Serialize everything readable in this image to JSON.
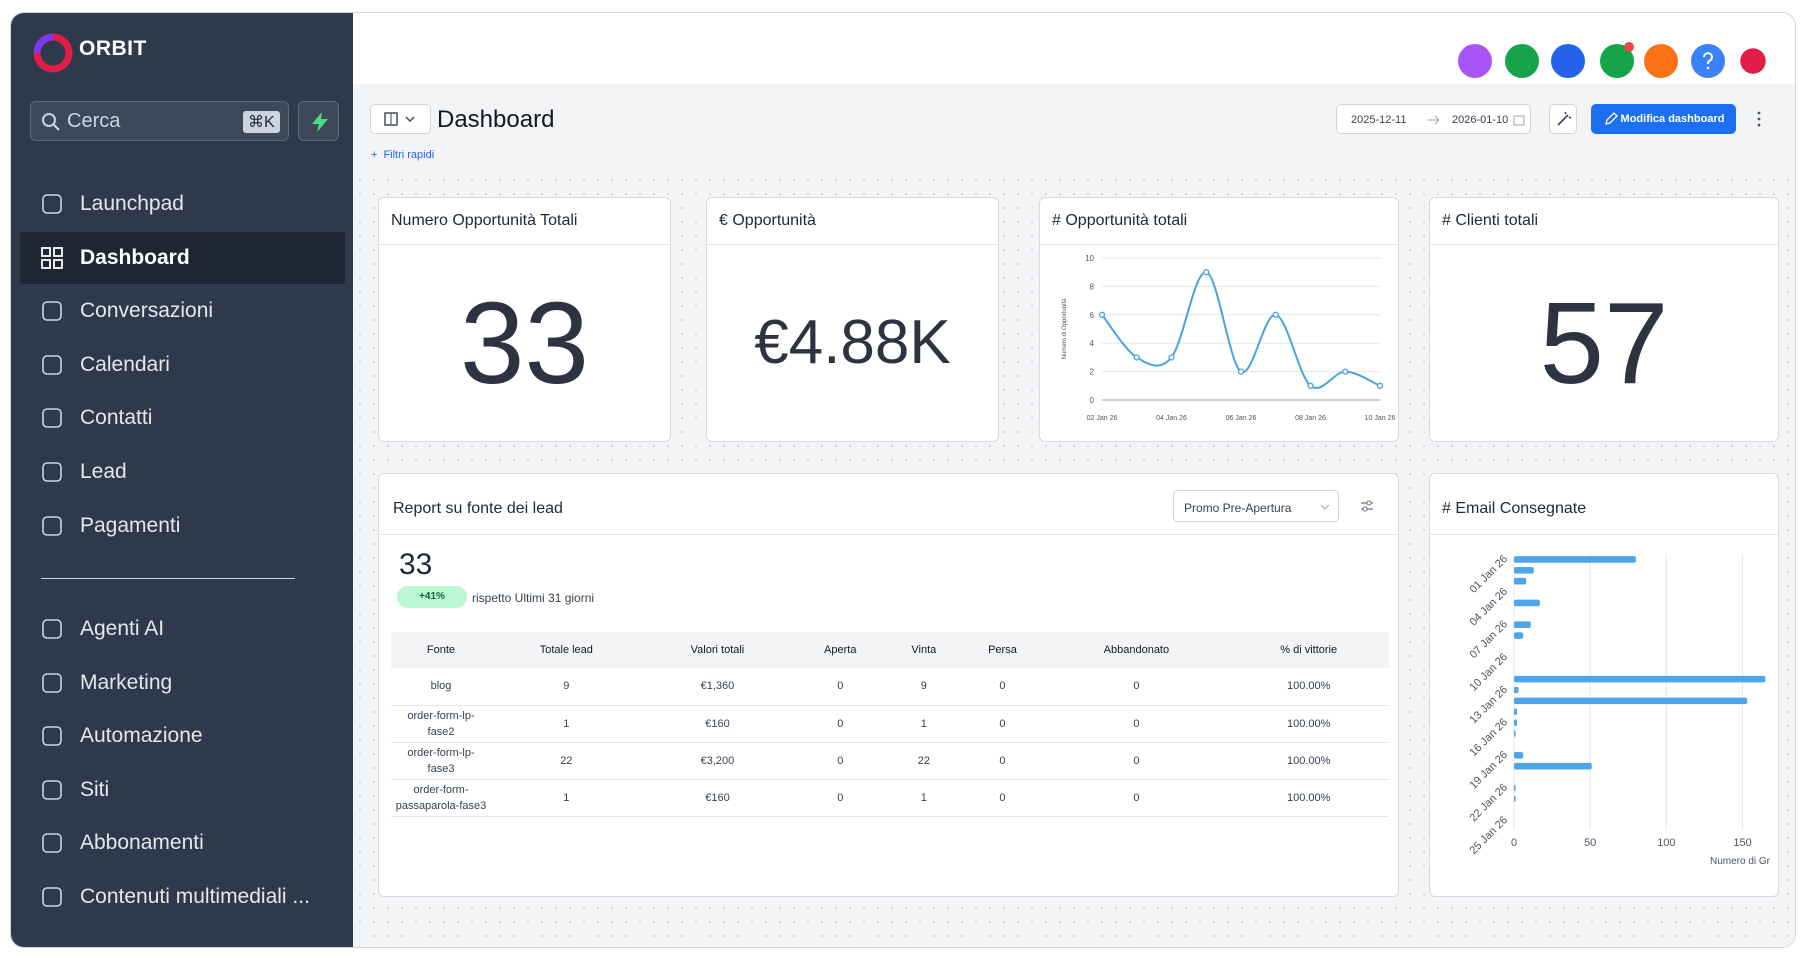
{
  "sidebar": {
    "brand": "ORBIT",
    "search_placeholder": "Cerca",
    "shortcut": "⌘K",
    "nav": [
      "Launchpad",
      "Dashboard",
      "Conversazioni",
      "Calendari",
      "Contatti",
      "Lead",
      "Pagamenti"
    ],
    "nav2": [
      "Agenti AI",
      "Marketing",
      "Automazione",
      "Siti",
      "Abbonamenti",
      "Contenuti multimediali ..."
    ]
  },
  "header": {
    "title": "Dashboard",
    "date_from": "2025-12-11",
    "date_to": "2026-01-10",
    "edit_button": "Modifica dashboard",
    "quick_filters": "Filtri rapidi"
  },
  "kpis": [
    {
      "title": "Numero Opportunità Totali",
      "value": 33
    },
    {
      "title": "€ Opportunità",
      "value": "€4.88K"
    },
    {
      "title": "# Clienti totali",
      "value": 57
    }
  ],
  "chart_data": [
    {
      "type": "line",
      "title": "# Opportunità totali",
      "ylabel": "Numero di Opportunità",
      "categories": [
        "02 Jan 26",
        null,
        "04 Jan 26",
        null,
        "06 Jan 26",
        null,
        "08 Jan 26",
        null,
        "10 Jan 26"
      ],
      "values": [
        6,
        3,
        3,
        9,
        2,
        6,
        1,
        2,
        1
      ],
      "color": "#4aa3df",
      "ylim": [
        0,
        10
      ],
      "yticks": [
        0,
        2,
        4,
        6,
        8,
        10
      ],
      "grid": true
    },
    {
      "type": "bar",
      "orientation": "horizontal",
      "title": "# Email Consegnate",
      "xlabel": "Numero di Gr",
      "categories": [
        "01 Jan 26",
        null,
        null,
        "04 Jan 26",
        null,
        null,
        "07 Jan 26",
        null,
        null,
        "10 Jan 26",
        null,
        null,
        "13 Jan 26",
        null,
        null,
        "16 Jan 26",
        null,
        null,
        "19 Jan 26",
        null,
        null,
        "22 Jan 26",
        null,
        null,
        "25 Jan 26"
      ],
      "values": [
        80,
        13,
        8,
        0,
        17,
        0,
        11,
        6,
        0,
        0,
        0,
        165,
        3,
        153,
        2,
        2,
        1,
        0,
        6,
        51,
        0,
        1,
        1,
        0,
        0
      ],
      "color": "#4ea5ea",
      "xlim": [
        0,
        168
      ],
      "xticks": [
        0,
        50,
        100,
        150
      ],
      "grid": true
    }
  ],
  "report": {
    "title": "Report su fonte dei lead",
    "filter": "Promo Pre-Apertura",
    "total": 33,
    "change": "+41%",
    "comparison": "rispetto Ultimi 31 giorni",
    "table": {
      "columns": [
        "Fonte",
        "Totale lead",
        "Valori totali",
        "Aperta",
        "Vinta",
        "Persa",
        "Abbandonato",
        "% di vittorie"
      ],
      "rows": [
        [
          "blog",
          9,
          "€1,360",
          0,
          9,
          0,
          0,
          "100.00%"
        ],
        [
          "order-form-lp-fase2",
          1,
          "€160",
          0,
          1,
          0,
          0,
          "100.00%"
        ],
        [
          "order-form-lp-fase3",
          22,
          "€3,200",
          0,
          22,
          0,
          0,
          "100.00%"
        ],
        [
          "order-form-passaparola-fase3",
          1,
          "€160",
          0,
          1,
          0,
          0,
          "100.00%"
        ]
      ]
    }
  }
}
